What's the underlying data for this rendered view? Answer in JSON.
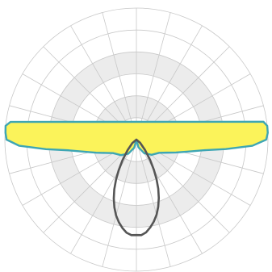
{
  "chart_data": {
    "type": "polar",
    "title": "",
    "radial_rings": 6,
    "shaded_bands": [
      [
        1,
        2
      ],
      [
        3,
        4
      ]
    ],
    "angular_step_deg": 15,
    "grid": true,
    "series": [
      {
        "color": "#3ea6b4",
        "fill": "#fbf35a",
        "points": [
          [
            0,
            0
          ],
          [
            15,
            0.36
          ],
          [
            30,
            0.72
          ],
          [
            45,
            0.98
          ],
          [
            60,
            1.2
          ],
          [
            67,
            1.52
          ],
          [
            72,
            1.9
          ],
          [
            77,
            2.42
          ],
          [
            81,
            3.1
          ],
          [
            84,
            4.1
          ],
          [
            87,
            5.3
          ],
          [
            90,
            5.92
          ],
          [
            93,
            6.0
          ],
          [
            96,
            6.0
          ],
          [
            98,
            5.85
          ],
          [
            -15,
            0.38
          ],
          [
            -30,
            0.74
          ],
          [
            -45,
            1.0
          ],
          [
            -60,
            1.23
          ],
          [
            -67,
            1.55
          ],
          [
            -72,
            1.93
          ],
          [
            -77,
            2.45
          ],
          [
            -81,
            3.12
          ],
          [
            -84,
            4.15
          ],
          [
            -87,
            5.35
          ],
          [
            -90,
            5.92
          ],
          [
            -93,
            5.98
          ],
          [
            -96,
            6.0
          ],
          [
            -98,
            5.8
          ]
        ]
      },
      {
        "color": "#555555",
        "fill": "none",
        "points": [
          [
            0,
            4.35
          ],
          [
            3,
            4.36
          ],
          [
            6,
            4.25
          ],
          [
            9,
            4.05
          ],
          [
            12,
            3.82
          ],
          [
            15,
            3.55
          ],
          [
            18,
            3.22
          ],
          [
            21,
            2.85
          ],
          [
            24,
            2.45
          ],
          [
            27,
            2.02
          ],
          [
            30,
            1.6
          ],
          [
            34,
            1.12
          ],
          [
            40,
            0.6
          ],
          [
            50,
            0.22
          ],
          [
            60,
            0.0
          ],
          [
            -3,
            4.36
          ],
          [
            -6,
            4.27
          ],
          [
            -9,
            4.08
          ],
          [
            -12,
            3.85
          ],
          [
            -15,
            3.58
          ],
          [
            -18,
            3.25
          ],
          [
            -21,
            2.88
          ],
          [
            -24,
            2.48
          ],
          [
            -27,
            2.05
          ],
          [
            -30,
            1.62
          ],
          [
            -34,
            1.14
          ],
          [
            -40,
            0.62
          ],
          [
            -50,
            0.24
          ],
          [
            -60,
            0.0
          ]
        ]
      }
    ]
  }
}
